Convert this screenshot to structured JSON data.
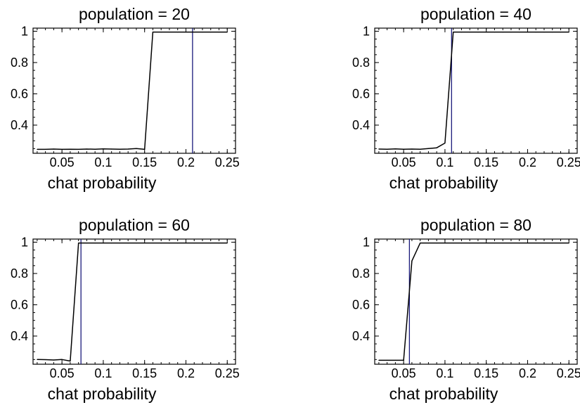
{
  "chart_data": [
    {
      "type": "line",
      "title": "population = 20",
      "xlabel": "chat probability",
      "ylabel": "",
      "xlim": [
        0.015,
        0.26
      ],
      "ylim": [
        0.22,
        1.02
      ],
      "x_ticks": [
        0.05,
        0.1,
        0.15,
        0.2,
        0.25
      ],
      "x_tick_labels": [
        "0.05",
        "0.1",
        "0.15",
        "0.2",
        "0.25"
      ],
      "y_ticks": [
        0.4,
        0.6,
        0.8,
        1
      ],
      "y_tick_labels": [
        "0.4",
        "0.6",
        "0.8",
        "1"
      ],
      "series": [
        {
          "x": [
            0.02,
            0.03,
            0.04,
            0.05,
            0.06,
            0.07,
            0.08,
            0.09,
            0.1,
            0.11,
            0.12,
            0.13,
            0.14,
            0.15,
            0.16,
            0.17,
            0.18,
            0.19,
            0.2,
            0.21,
            0.22,
            0.23,
            0.24,
            0.25
          ],
          "y": [
            0.245,
            0.245,
            0.247,
            0.245,
            0.246,
            0.245,
            0.247,
            0.246,
            0.248,
            0.247,
            0.246,
            0.247,
            0.25,
            0.245,
            0.995,
            0.995,
            0.995,
            0.995,
            0.995,
            0.995,
            0.995,
            0.995,
            0.995,
            0.995
          ],
          "color": "#000000"
        }
      ],
      "vline": {
        "x": 0.208,
        "color": "#1a1a7a"
      }
    },
    {
      "type": "line",
      "title": "population = 40",
      "xlabel": "chat probability",
      "ylabel": "",
      "xlim": [
        0.015,
        0.26
      ],
      "ylim": [
        0.22,
        1.02
      ],
      "x_ticks": [
        0.05,
        0.1,
        0.15,
        0.2,
        0.25
      ],
      "x_tick_labels": [
        "0.05",
        "0.1",
        "0.15",
        "0.2",
        "0.25"
      ],
      "y_ticks": [
        0.4,
        0.6,
        0.8,
        1
      ],
      "y_tick_labels": [
        "0.4",
        "0.6",
        "0.8",
        "1"
      ],
      "series": [
        {
          "x": [
            0.02,
            0.03,
            0.04,
            0.05,
            0.06,
            0.07,
            0.08,
            0.09,
            0.1,
            0.11,
            0.12,
            0.13,
            0.14,
            0.15,
            0.16,
            0.17,
            0.18,
            0.19,
            0.2,
            0.21,
            0.22,
            0.23,
            0.24,
            0.25
          ],
          "y": [
            0.247,
            0.246,
            0.248,
            0.246,
            0.247,
            0.246,
            0.25,
            0.255,
            0.285,
            0.995,
            0.995,
            0.995,
            0.995,
            0.995,
            0.995,
            0.995,
            0.995,
            0.995,
            0.995,
            0.995,
            0.995,
            0.995,
            0.995,
            0.995
          ],
          "color": "#000000"
        }
      ],
      "vline": {
        "x": 0.108,
        "color": "#1a1a7a"
      }
    },
    {
      "type": "line",
      "title": "population = 60",
      "xlabel": "chat probability",
      "ylabel": "",
      "xlim": [
        0.015,
        0.26
      ],
      "ylim": [
        0.22,
        1.02
      ],
      "x_ticks": [
        0.05,
        0.1,
        0.15,
        0.2,
        0.25
      ],
      "x_tick_labels": [
        "0.05",
        "0.1",
        "0.15",
        "0.2",
        "0.25"
      ],
      "y_ticks": [
        0.4,
        0.6,
        0.8,
        1
      ],
      "y_tick_labels": [
        "0.4",
        "0.6",
        "0.8",
        "1"
      ],
      "series": [
        {
          "x": [
            0.02,
            0.03,
            0.04,
            0.05,
            0.06,
            0.07,
            0.08,
            0.09,
            0.1,
            0.11,
            0.12,
            0.13,
            0.14,
            0.15,
            0.16,
            0.17,
            0.18,
            0.19,
            0.2,
            0.21,
            0.22,
            0.23,
            0.24,
            0.25
          ],
          "y": [
            0.25,
            0.249,
            0.247,
            0.25,
            0.24,
            0.995,
            0.995,
            0.995,
            0.995,
            0.995,
            0.995,
            0.995,
            0.995,
            0.995,
            0.995,
            0.995,
            0.995,
            0.995,
            0.995,
            0.995,
            0.995,
            0.995,
            0.995,
            0.995
          ],
          "color": "#000000"
        }
      ],
      "vline": {
        "x": 0.073,
        "color": "#1a1a7a"
      }
    },
    {
      "type": "line",
      "title": "population = 80",
      "xlabel": "chat probability",
      "ylabel": "",
      "xlim": [
        0.015,
        0.26
      ],
      "ylim": [
        0.22,
        1.02
      ],
      "x_ticks": [
        0.05,
        0.1,
        0.15,
        0.2,
        0.25
      ],
      "x_tick_labels": [
        "0.05",
        "0.1",
        "0.15",
        "0.2",
        "0.25"
      ],
      "y_ticks": [
        0.4,
        0.6,
        0.8,
        1
      ],
      "y_tick_labels": [
        "0.4",
        "0.6",
        "0.8",
        "1"
      ],
      "series": [
        {
          "x": [
            0.02,
            0.03,
            0.04,
            0.05,
            0.06,
            0.07,
            0.08,
            0.09,
            0.1,
            0.11,
            0.12,
            0.13,
            0.14,
            0.15,
            0.16,
            0.17,
            0.18,
            0.19,
            0.2,
            0.21,
            0.22,
            0.23,
            0.24,
            0.25
          ],
          "y": [
            0.245,
            0.245,
            0.245,
            0.245,
            0.88,
            0.995,
            0.995,
            0.995,
            0.995,
            0.995,
            0.995,
            0.995,
            0.995,
            0.995,
            0.995,
            0.995,
            0.995,
            0.995,
            0.995,
            0.995,
            0.995,
            0.995,
            0.995,
            0.995
          ],
          "color": "#000000"
        }
      ],
      "vline": {
        "x": 0.057,
        "color": "#1a1a7a"
      }
    }
  ]
}
